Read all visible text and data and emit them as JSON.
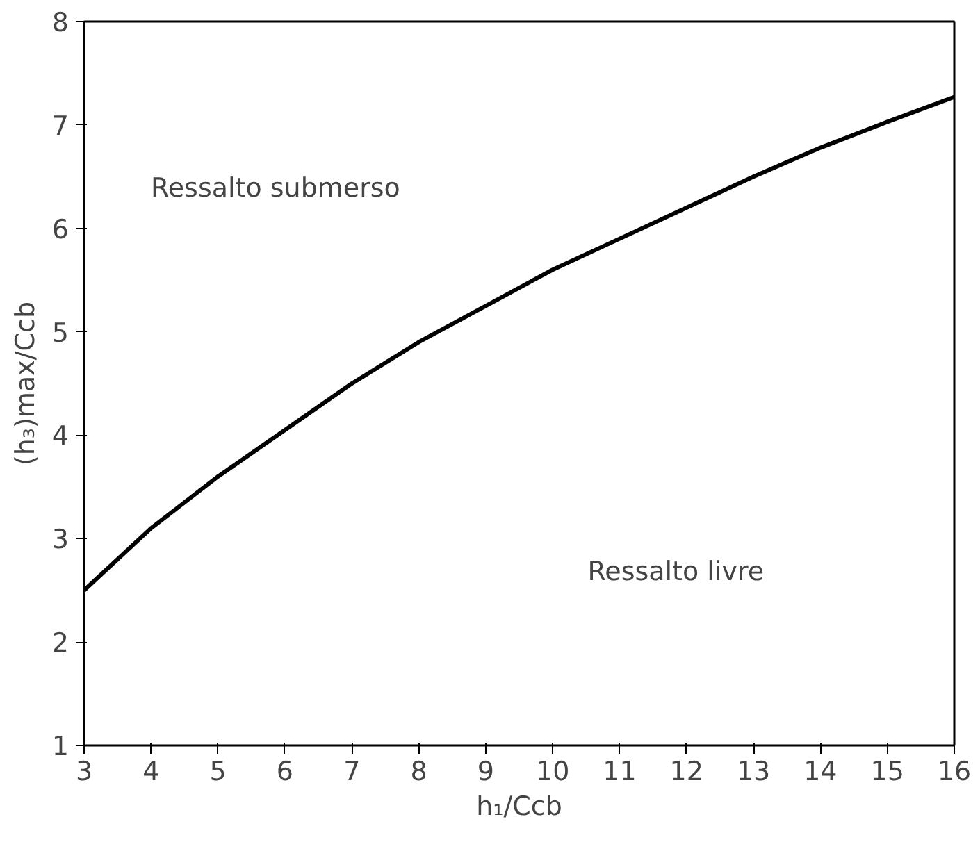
{
  "chart_data": {
    "type": "line",
    "x": [
      3,
      4,
      5,
      6,
      7,
      8,
      9,
      10,
      11,
      12,
      13,
      14,
      15,
      16
    ],
    "series": [
      {
        "color": "#000000",
        "values": [
          2.5,
          3.1,
          3.6,
          4.05,
          4.5,
          4.9,
          5.25,
          5.6,
          5.9,
          6.2,
          6.5,
          6.78,
          7.03,
          7.27
        ]
      }
    ],
    "xlabel": "h₁/Ccb",
    "ylabel": "(h₃)max/Ccb",
    "xlim": [
      3,
      16
    ],
    "ylim": [
      1,
      8
    ],
    "xticks": [
      3,
      4,
      5,
      6,
      7,
      8,
      9,
      10,
      11,
      12,
      13,
      14,
      15,
      16
    ],
    "yticks": [
      1,
      2,
      3,
      4,
      5,
      6,
      7,
      8
    ],
    "annotations": [
      "Ressalto submerso",
      "Ressalto livre"
    ],
    "grid": false,
    "marker": "none",
    "line_style": "solid"
  }
}
